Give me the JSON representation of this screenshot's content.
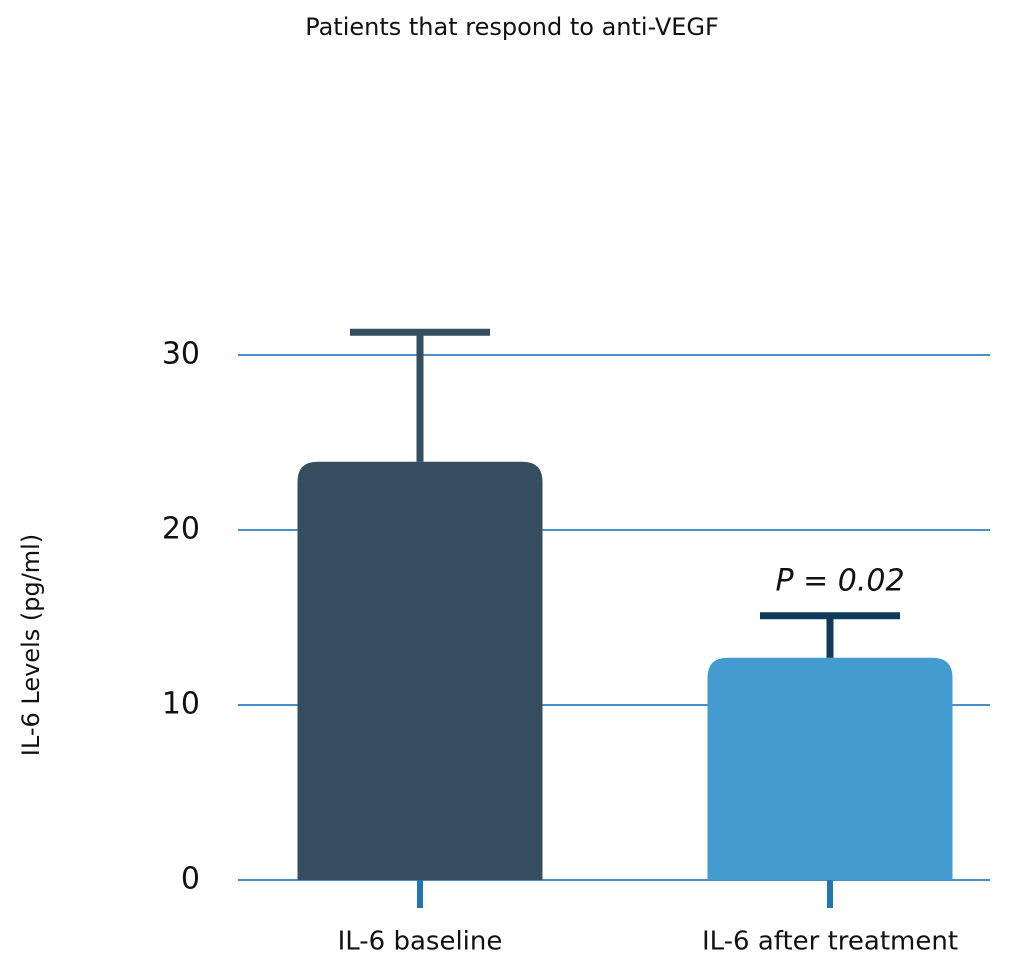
{
  "chart_data": {
    "type": "bar",
    "title": "Patients that respond to anti-VEGF",
    "y_label": "IL-6 Levels (pg/ml)",
    "categories": [
      "IL-6 baseline",
      "IL-6 after treatment"
    ],
    "values": [
      23.9,
      12.7
    ],
    "errors": [
      7.4,
      2.4
    ],
    "colors": [
      "#344e60",
      "#439bd0"
    ],
    "error_colors": [
      "#344e60",
      "#0f3a5c"
    ],
    "annotation": "P = 0.02",
    "ylim": [
      0,
      32
    ],
    "yticks": [
      0,
      10,
      20,
      30
    ],
    "grid": true
  }
}
